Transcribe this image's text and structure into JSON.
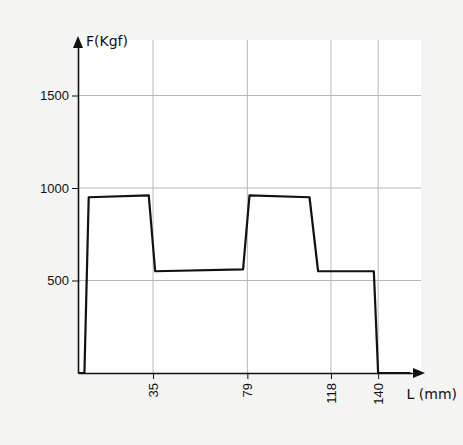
{
  "chart_data": {
    "type": "line",
    "y_label": "F(Kgf)",
    "x_label": "L (mm)",
    "x": [
      0,
      3,
      5,
      33,
      36,
      77,
      80,
      108,
      112,
      138,
      140,
      155
    ],
    "values": [
      0,
      0,
      950,
      960,
      550,
      560,
      960,
      950,
      550,
      550,
      0,
      0
    ],
    "color": "#111111",
    "xlim": [
      0,
      160
    ],
    "xticks": [
      35,
      79,
      118,
      140
    ],
    "ylim": [
      0,
      1800
    ],
    "yticks": [
      500,
      1000,
      1500
    ],
    "grid": true
  }
}
